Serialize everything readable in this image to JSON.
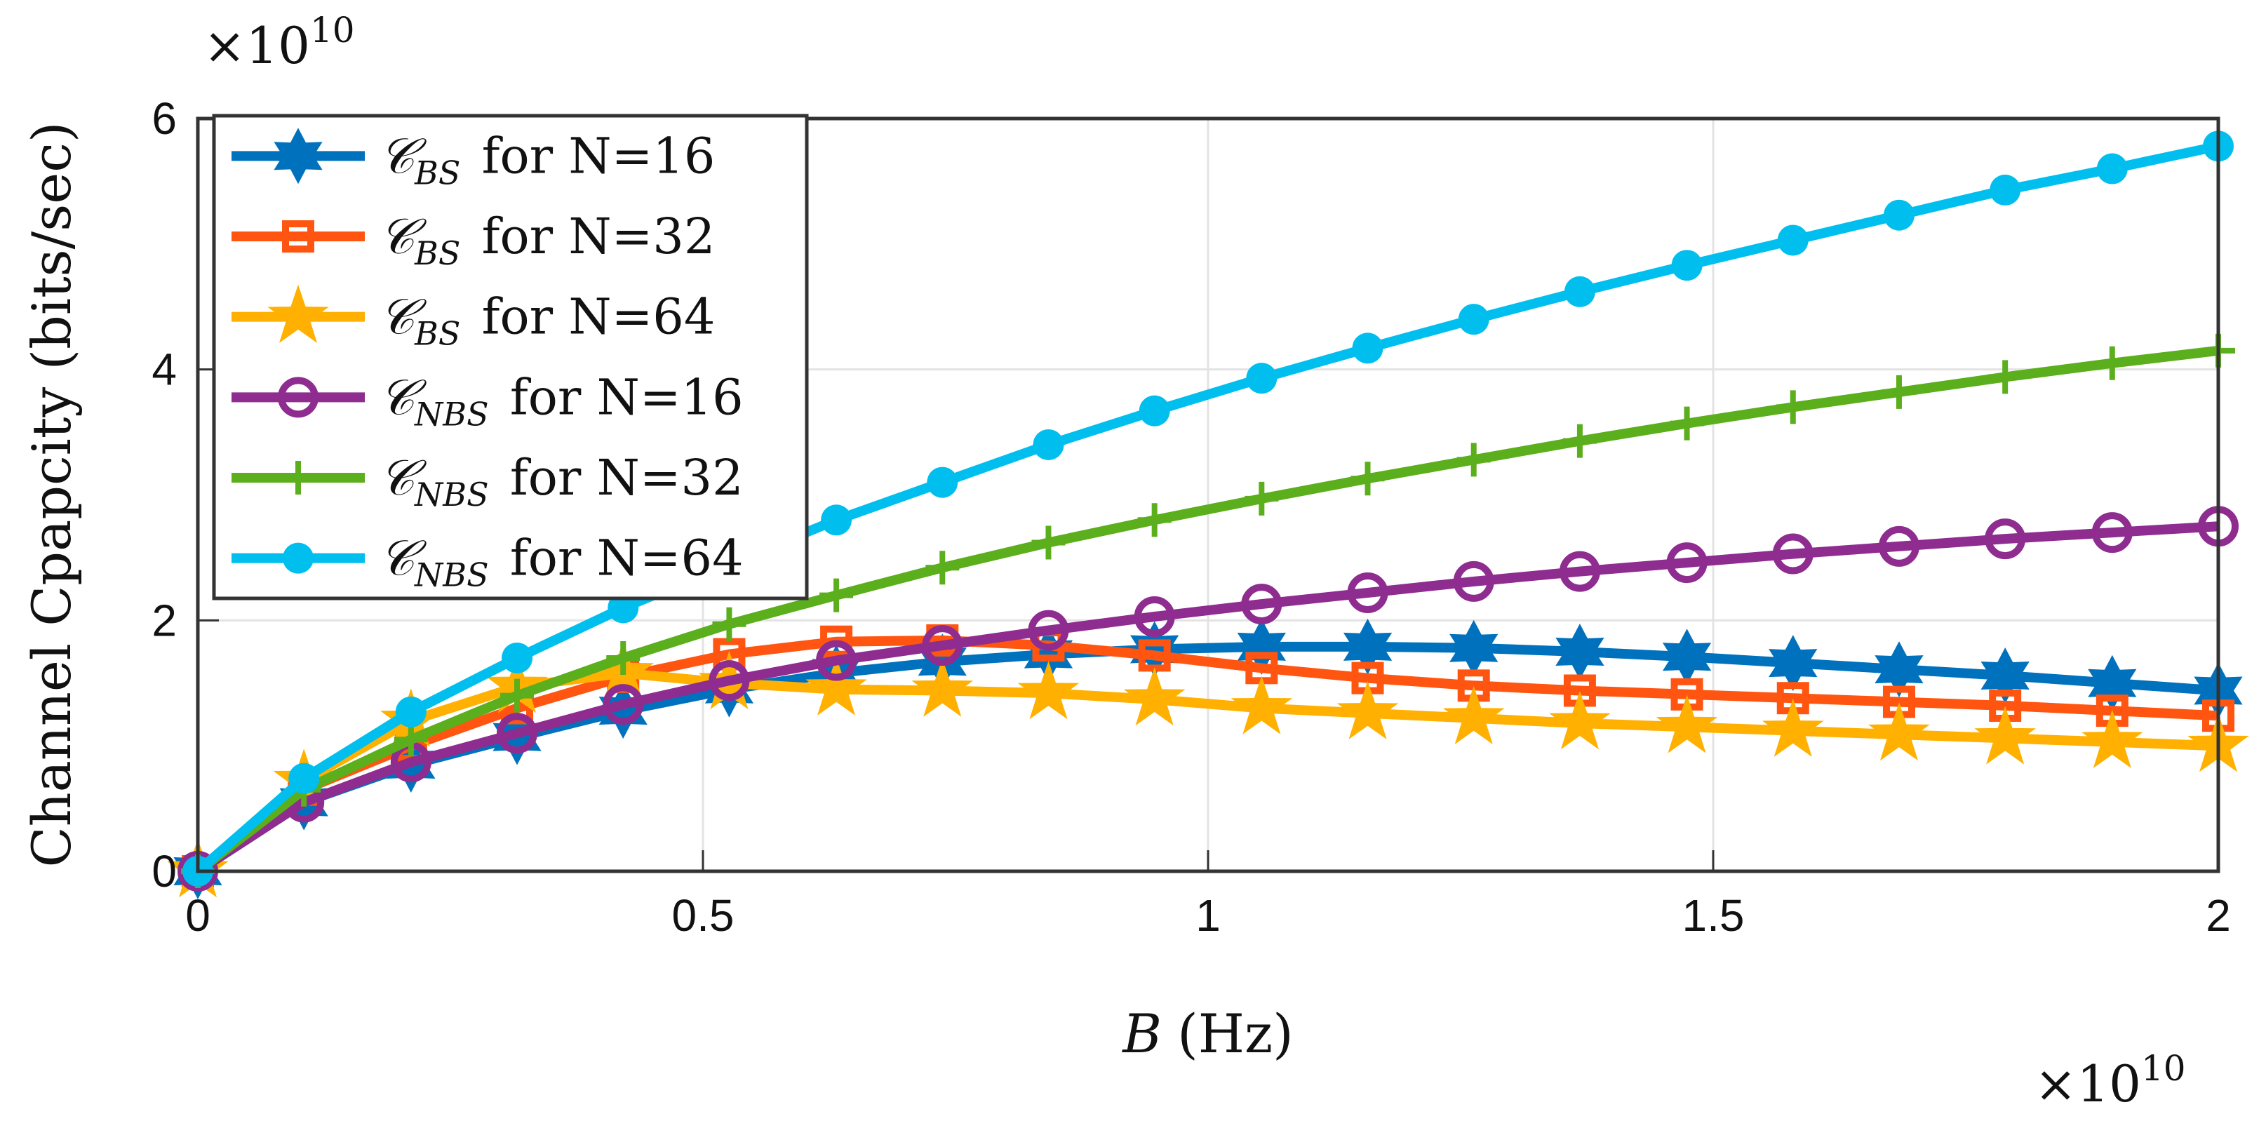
{
  "chart_data": {
    "type": "line",
    "xlabel": {
      "var": "B",
      "unit": "(Hz)"
    },
    "ylabel": "Channel Cpapcity (bits/sec)",
    "x_exponent": "×10",
    "x_exponent_power": "10",
    "y_exponent": "×10",
    "y_exponent_power": "10",
    "xlim": [
      0,
      2
    ],
    "ylim": [
      0,
      6
    ],
    "xticks": [
      "0",
      "0.5",
      "1",
      "1.5",
      "2"
    ],
    "xtick_values": [
      0,
      0.5,
      1,
      1.5,
      2
    ],
    "yticks": [
      "0",
      "2",
      "4",
      "6"
    ],
    "ytick_values": [
      0,
      2,
      4,
      6
    ],
    "grid": true,
    "legend_placement": "top-left",
    "x": [
      0,
      0.105,
      0.211,
      0.316,
      0.421,
      0.526,
      0.632,
      0.737,
      0.842,
      0.947,
      1.053,
      1.158,
      1.263,
      1.368,
      1.474,
      1.579,
      1.684,
      1.789,
      1.895,
      2.0
    ],
    "series": [
      {
        "name": "C_BS for N=16",
        "symbol": "𝒞",
        "sub": "BS",
        "rest": " for N=16",
        "color": "#0072BD",
        "marker": "hexagram",
        "values": [
          0,
          0.55,
          0.85,
          1.07,
          1.28,
          1.45,
          1.58,
          1.67,
          1.73,
          1.77,
          1.79,
          1.79,
          1.78,
          1.75,
          1.71,
          1.66,
          1.61,
          1.56,
          1.5,
          1.44
        ]
      },
      {
        "name": "C_BS for N=32",
        "symbol": "𝒞",
        "sub": "BS",
        "rest": " for N=32",
        "color": "#FF5511",
        "marker": "square",
        "values": [
          0,
          0.65,
          1.0,
          1.3,
          1.55,
          1.73,
          1.83,
          1.84,
          1.8,
          1.72,
          1.62,
          1.54,
          1.48,
          1.44,
          1.41,
          1.38,
          1.35,
          1.32,
          1.28,
          1.24
        ]
      },
      {
        "name": "C_BS for N=64",
        "symbol": "𝒞",
        "sub": "BS",
        "rest": " for N=64",
        "color": "#FFB000",
        "marker": "pentagram",
        "values": [
          0,
          0.72,
          1.2,
          1.47,
          1.58,
          1.5,
          1.45,
          1.44,
          1.42,
          1.37,
          1.3,
          1.26,
          1.22,
          1.18,
          1.15,
          1.12,
          1.09,
          1.06,
          1.03,
          1.0
        ]
      },
      {
        "name": "C_NBS for N=16",
        "symbol": "𝒞",
        "sub": "NBS",
        "rest": " for N=16",
        "color": "#8E2C90",
        "marker": "circle",
        "values": [
          0,
          0.55,
          0.87,
          1.1,
          1.33,
          1.52,
          1.68,
          1.8,
          1.92,
          2.03,
          2.13,
          2.22,
          2.31,
          2.39,
          2.46,
          2.53,
          2.59,
          2.65,
          2.7,
          2.75
        ]
      },
      {
        "name": "C_NBS for N=32",
        "symbol": "𝒞",
        "sub": "NBS",
        "rest": " for N=32",
        "color": "#5BAE1C",
        "marker": "plus",
        "values": [
          0,
          0.65,
          1.05,
          1.4,
          1.7,
          1.97,
          2.2,
          2.42,
          2.62,
          2.8,
          2.97,
          3.13,
          3.28,
          3.43,
          3.57,
          3.7,
          3.82,
          3.94,
          4.05,
          4.15
        ]
      },
      {
        "name": "C_NBS for N=64",
        "symbol": "𝒞",
        "sub": "NBS",
        "rest": " for N=64",
        "color": "#00BFEE",
        "marker": "dot",
        "values": [
          0,
          0.74,
          1.27,
          1.7,
          2.1,
          2.45,
          2.8,
          3.1,
          3.4,
          3.67,
          3.93,
          4.17,
          4.4,
          4.62,
          4.83,
          5.03,
          5.23,
          5.43,
          5.6,
          5.78
        ]
      }
    ]
  }
}
